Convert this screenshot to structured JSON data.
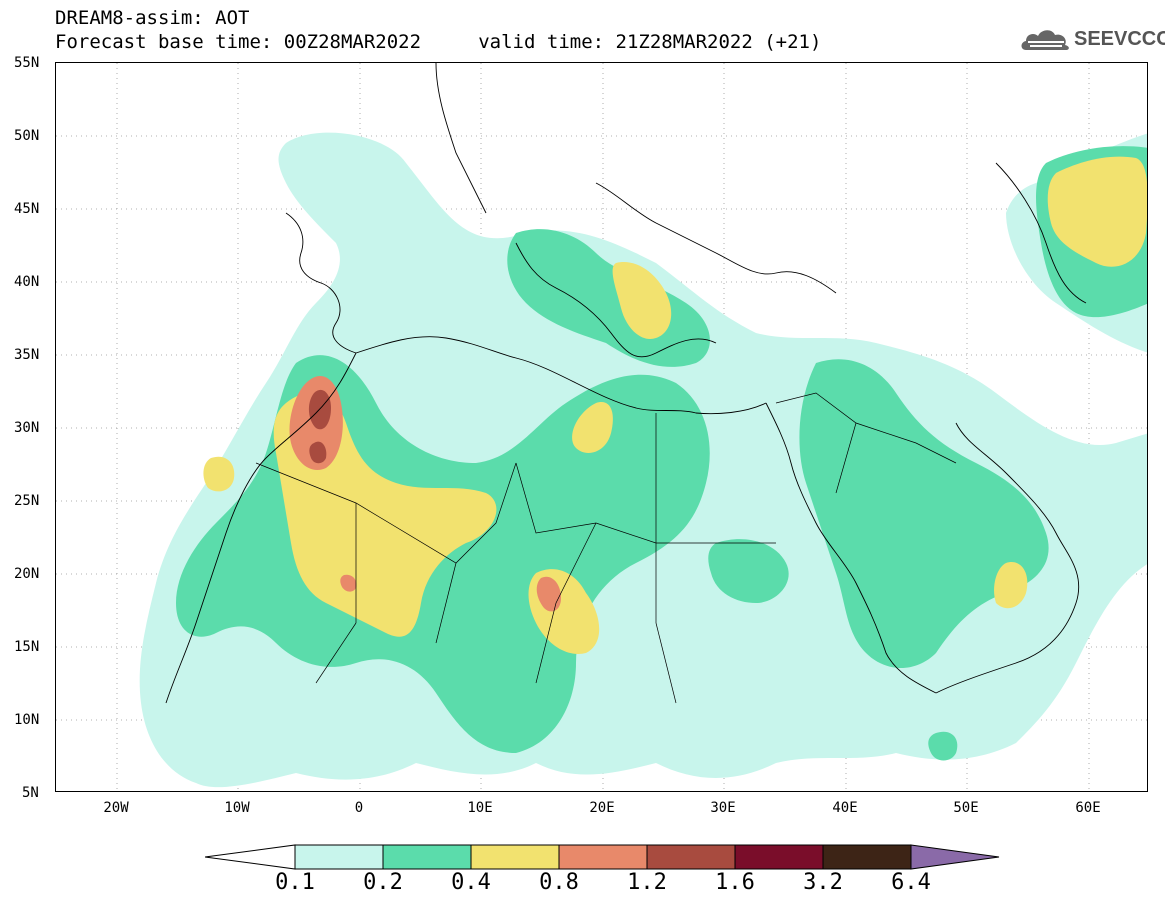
{
  "title": {
    "line1": "DREAM8-assim: AOT",
    "line2": "Forecast base time: 00Z28MAR2022     valid time: 21Z28MAR2022 (+21)"
  },
  "logo": {
    "text": "SEEVCCC",
    "icon": "cloud-icon"
  },
  "axes": {
    "lat_ticks": [
      "55N",
      "50N",
      "45N",
      "40N",
      "35N",
      "30N",
      "25N",
      "20N",
      "15N",
      "10N",
      "5N"
    ],
    "lon_ticks": [
      "20W",
      "10W",
      "0",
      "10E",
      "20E",
      "30E",
      "40E",
      "50E",
      "60E"
    ]
  },
  "colorbar": {
    "labels": [
      "0.1",
      "0.2",
      "0.4",
      "0.8",
      "1.2",
      "1.6",
      "3.2",
      "6.4"
    ],
    "colors": [
      "#ffffff",
      "#c8f5ec",
      "#5bdcab",
      "#f2e26f",
      "#e8896a",
      "#a84b3f",
      "#7a0d2a",
      "#3d2416",
      "#8a6aa8"
    ]
  },
  "colors": {
    "level1": "#c8f5ec",
    "level2": "#5bdcab",
    "level3": "#f2e26f",
    "level4": "#e8896a",
    "level5": "#a84b3f"
  }
}
